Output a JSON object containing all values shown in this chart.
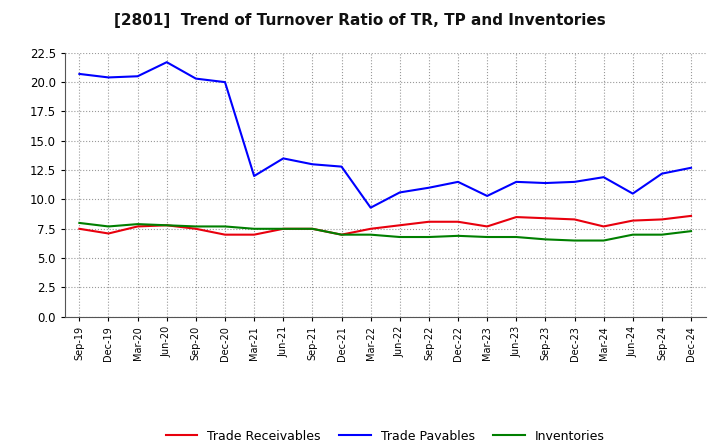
{
  "title": "[2801]  Trend of Turnover Ratio of TR, TP and Inventories",
  "x_labels": [
    "Sep-19",
    "Dec-19",
    "Mar-20",
    "Jun-20",
    "Sep-20",
    "Dec-20",
    "Mar-21",
    "Jun-21",
    "Sep-21",
    "Dec-21",
    "Mar-22",
    "Jun-22",
    "Sep-22",
    "Dec-22",
    "Mar-23",
    "Jun-23",
    "Sep-23",
    "Dec-23",
    "Mar-24",
    "Jun-24",
    "Sep-24",
    "Dec-24"
  ],
  "trade_receivables": [
    7.5,
    7.1,
    7.7,
    7.8,
    7.5,
    7.0,
    7.0,
    7.5,
    7.5,
    7.0,
    7.5,
    7.8,
    8.1,
    8.1,
    7.7,
    8.5,
    8.4,
    8.3,
    7.7,
    8.2,
    8.3,
    8.6
  ],
  "trade_payables": [
    20.7,
    20.4,
    20.5,
    21.7,
    20.3,
    20.0,
    12.0,
    13.5,
    13.0,
    12.8,
    9.3,
    10.6,
    11.0,
    11.5,
    10.3,
    11.5,
    11.4,
    11.5,
    11.9,
    10.5,
    12.2,
    12.7
  ],
  "inventories": [
    8.0,
    7.7,
    7.9,
    7.8,
    7.7,
    7.7,
    7.5,
    7.5,
    7.5,
    7.0,
    7.0,
    6.8,
    6.8,
    6.9,
    6.8,
    6.8,
    6.6,
    6.5,
    6.5,
    7.0,
    7.0,
    7.3
  ],
  "ylim": [
    0.0,
    22.5
  ],
  "yticks": [
    0.0,
    2.5,
    5.0,
    7.5,
    10.0,
    12.5,
    15.0,
    17.5,
    20.0,
    22.5
  ],
  "color_tr": "#e8000d",
  "color_tp": "#0000ff",
  "color_inv": "#007f00",
  "legend_labels": [
    "Trade Receivables",
    "Trade Payables",
    "Inventories"
  ],
  "background_color": "#ffffff",
  "grid_color": "#aaaaaa"
}
